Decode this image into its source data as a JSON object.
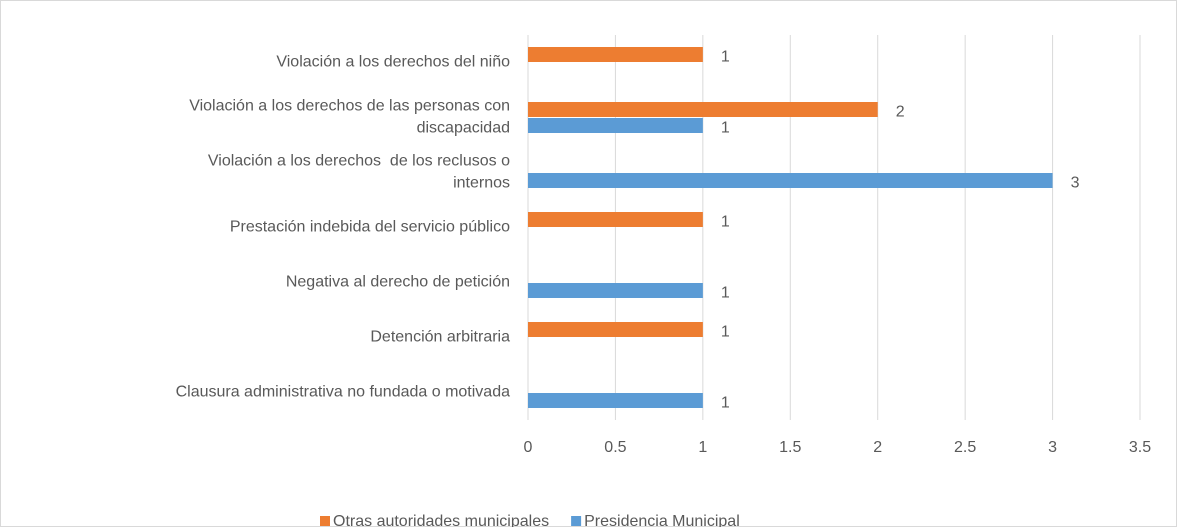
{
  "chart_data": {
    "type": "bar",
    "orientation": "horizontal",
    "categories": [
      "Violación a los derechos del niño",
      "Violación a los derechos de las personas con discapacidad",
      "Violación a los derechos  de los reclusos o internos",
      "Prestación indebida del servicio público",
      "Negativa al derecho de petición",
      "Detención arbitraria",
      "Clausura administrativa no fundada o motivada"
    ],
    "series": [
      {
        "name": "Otras autoridades municipales",
        "color": "#ed7d31",
        "values": [
          1,
          2,
          null,
          1,
          null,
          1,
          null
        ]
      },
      {
        "name": "Presidencia Municipal",
        "color": "#5b9bd5",
        "values": [
          null,
          1,
          3,
          null,
          1,
          null,
          1
        ]
      }
    ],
    "xlim": [
      0,
      3.5
    ],
    "xticks": [
      0,
      0.5,
      1,
      1.5,
      2,
      2.5,
      3,
      3.5
    ],
    "grid": true,
    "legend": "bottom"
  }
}
